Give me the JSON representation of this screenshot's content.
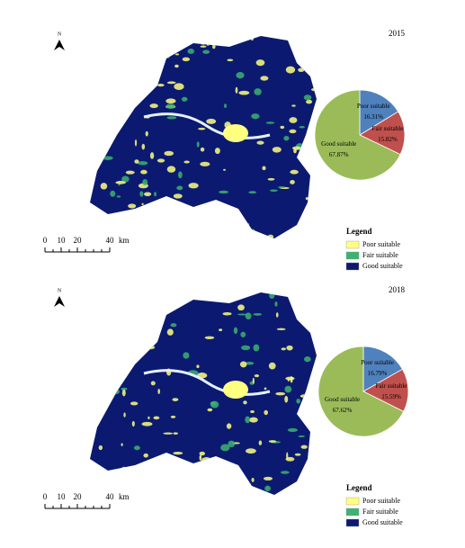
{
  "panels": [
    {
      "year": "2015",
      "north": "N",
      "pie": {
        "type": "pie",
        "categories": [
          "Poor suitable",
          "Fair suitable",
          "Good suitable"
        ],
        "values": [
          16.31,
          15.82,
          67.87
        ],
        "value_labels": [
          "16.31%",
          "15.82%",
          "67.87%"
        ],
        "colors": [
          "#4f81bd",
          "#c0504d",
          "#9bbb59"
        ]
      },
      "scale": {
        "ticks": [
          0,
          10,
          20,
          40
        ],
        "unit": "km"
      },
      "legend": {
        "title": "Legend",
        "items": [
          {
            "label": "Poor suitable",
            "color": "#ffff80"
          },
          {
            "label": "Fair suitable",
            "color": "#3cb371"
          },
          {
            "label": "Good suitable",
            "color": "#0b1a70"
          }
        ]
      }
    },
    {
      "year": "2018",
      "north": "N",
      "pie": {
        "type": "pie",
        "categories": [
          "Poor suitable",
          "Fair suitable",
          "Good suitable"
        ],
        "values": [
          16.79,
          15.59,
          67.62
        ],
        "value_labels": [
          "16.79%",
          "15.59%",
          "67.62%"
        ],
        "colors": [
          "#4f81bd",
          "#c0504d",
          "#9bbb59"
        ]
      },
      "scale": {
        "ticks": [
          0,
          10,
          20,
          40
        ],
        "unit": "km"
      },
      "legend": {
        "title": "Legend",
        "items": [
          {
            "label": "Poor suitable",
            "color": "#ffff80"
          },
          {
            "label": "Fair suitable",
            "color": "#3cb371"
          },
          {
            "label": "Good suitable",
            "color": "#0b1a70"
          }
        ]
      }
    }
  ]
}
